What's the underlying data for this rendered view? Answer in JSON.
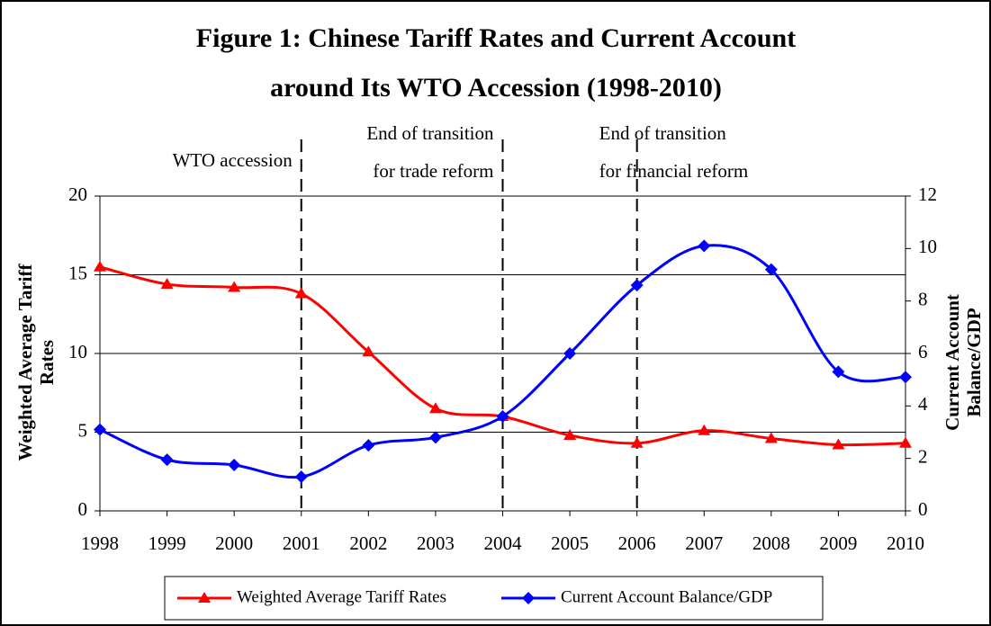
{
  "chart_data": {
    "type": "line",
    "title": [
      "Figure 1: Chinese Tariff Rates and Current Account",
      "around Its WTO Accession (1998-2010)"
    ],
    "categories": [
      "1998",
      "1999",
      "2000",
      "2001",
      "2002",
      "2003",
      "2004",
      "2005",
      "2006",
      "2007",
      "2008",
      "2009",
      "2010"
    ],
    "series": [
      {
        "name": "Weighted Average Tariff Rates",
        "color": "#ff0000",
        "marker": "triangle",
        "values": [
          15.5,
          14.4,
          14.2,
          13.8,
          10.1,
          6.5,
          6.0,
          4.8,
          4.3,
          5.1,
          4.6,
          4.2,
          4.3
        ]
      },
      {
        "name": "Current Account Balance/GDP",
        "color": "#0000ff",
        "marker": "diamond",
        "axis": "y2",
        "values": [
          3.1,
          1.95,
          1.75,
          1.3,
          2.5,
          2.8,
          3.6,
          6.0,
          8.6,
          10.1,
          9.2,
          5.3,
          5.1
        ]
      }
    ],
    "y_label": [
      "Weighted Average Tariff",
      "Rates"
    ],
    "y2_label": [
      "Current Account",
      "Balance/GDP"
    ],
    "ylim": [
      0,
      20
    ],
    "yticks": [
      0,
      5,
      10,
      15,
      20
    ],
    "y2lim": [
      0,
      12
    ],
    "y2ticks": [
      0,
      2,
      4,
      6,
      8,
      10,
      12
    ],
    "grid": true,
    "smooth": true,
    "legend": "bottom",
    "annotations": [
      {
        "lines": [
          "WTO accession"
        ],
        "at": 3,
        "side": "left"
      },
      {
        "lines": [
          "End of transition",
          "for trade reform"
        ],
        "at": 6,
        "side": "left"
      },
      {
        "lines": [
          "End of transition",
          "for financial reform"
        ],
        "at": 8,
        "side": "right"
      }
    ]
  }
}
